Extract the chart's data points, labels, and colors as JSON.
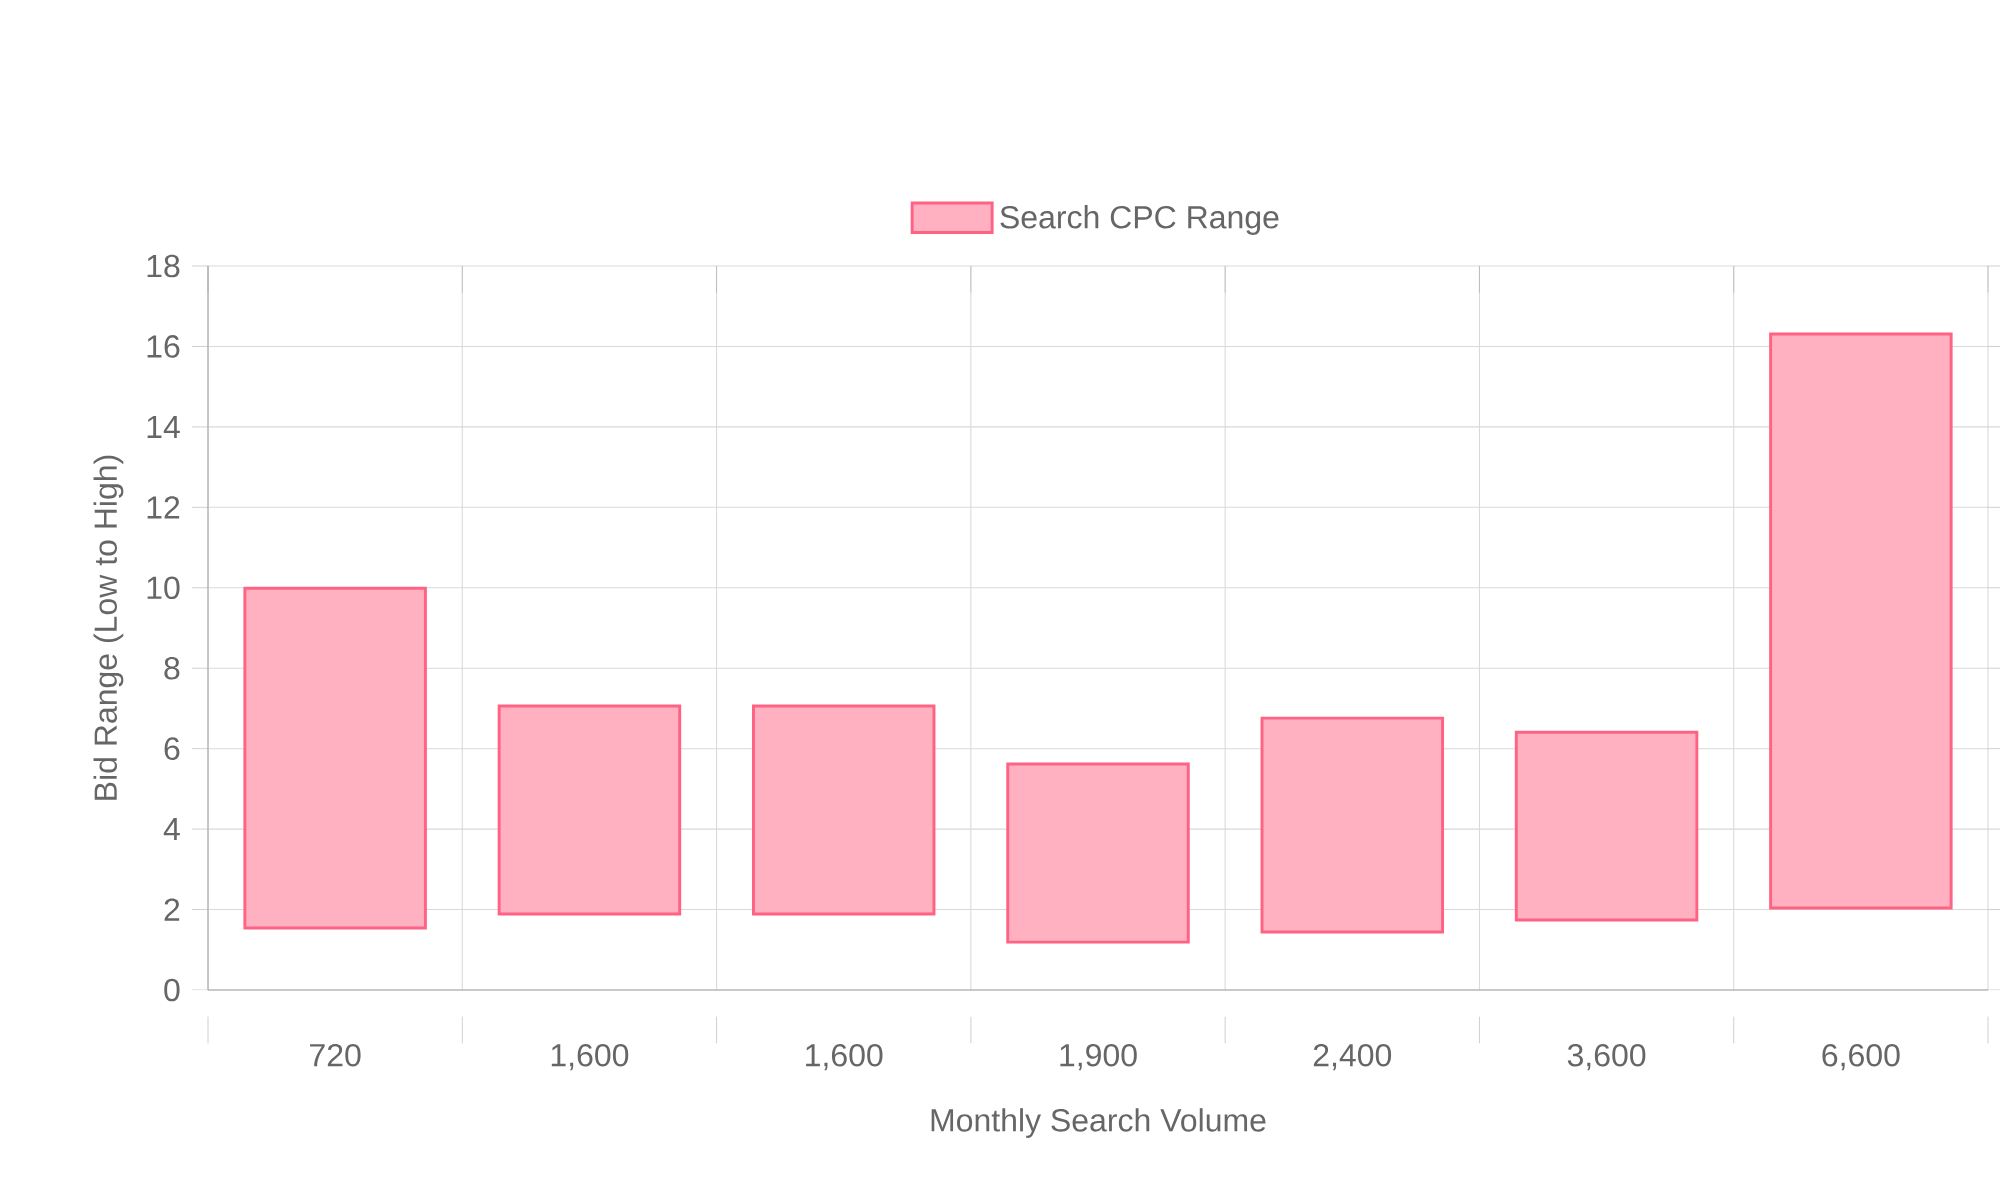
{
  "chart_data": {
    "type": "bar",
    "xlabel": "Monthly Search Volume",
    "ylabel": "Bid Range (Low to High)",
    "categories": [
      "720",
      "1,600",
      "1,600",
      "1,900",
      "2,400",
      "3,600",
      "6,600"
    ],
    "series": [
      {
        "name": "Search CPC Range",
        "color": "#ff6384",
        "values": [
          8.45,
          5.17,
          5.17,
          4.43,
          5.32,
          4.67,
          14.27
        ],
        "base": [
          1.54,
          1.89,
          1.89,
          1.19,
          1.44,
          1.74,
          2.04
        ]
      }
    ],
    "ylim": [
      0,
      18
    ],
    "yticks": [
      0,
      2,
      4,
      6,
      8,
      10,
      12,
      14,
      16,
      18
    ],
    "grid": true,
    "legend": "top"
  }
}
